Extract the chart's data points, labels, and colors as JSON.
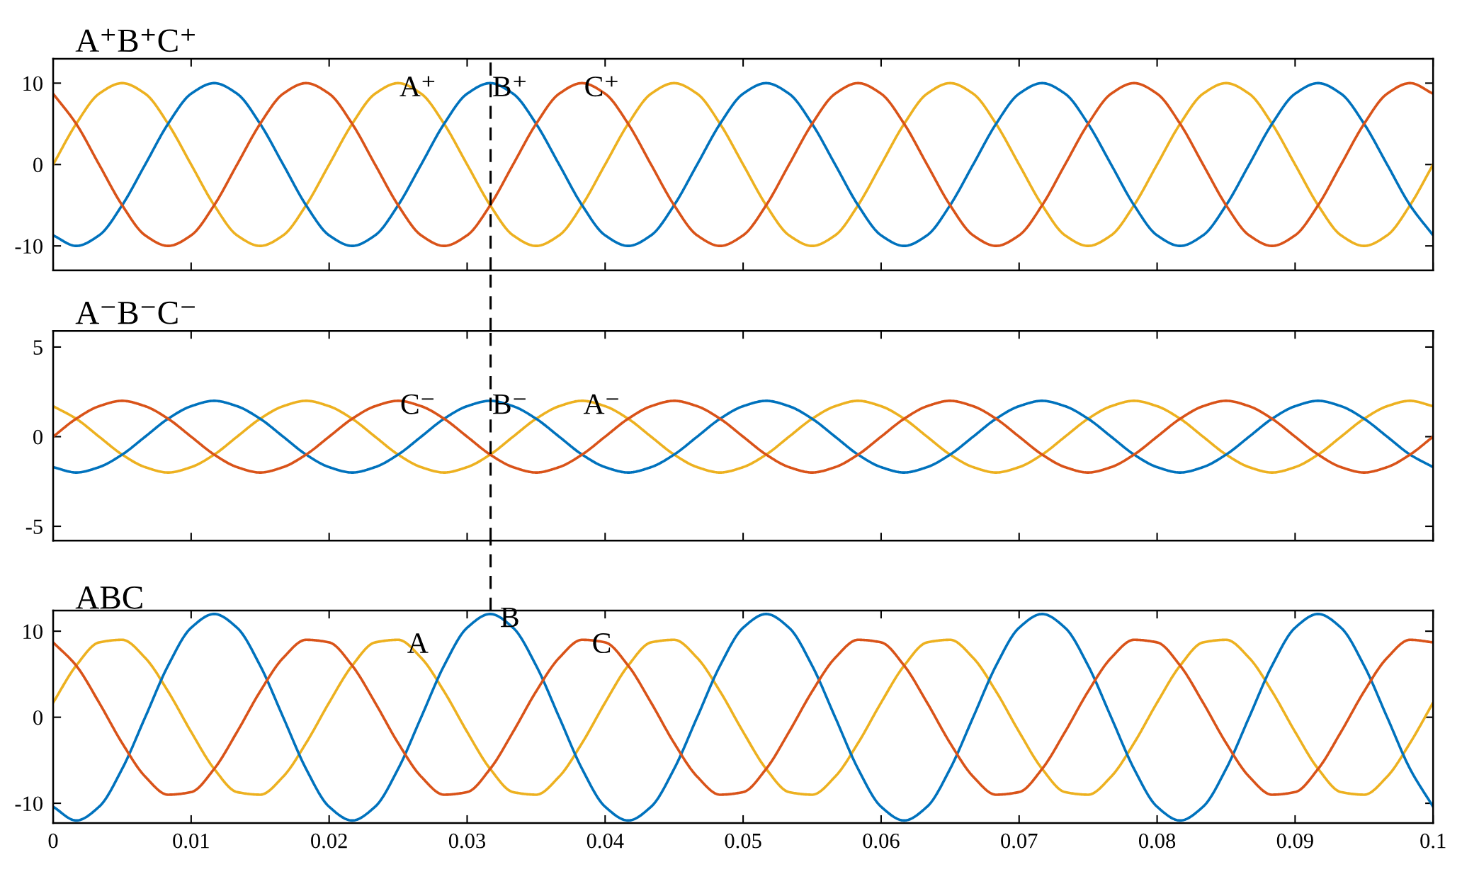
{
  "chart_data": [
    {
      "type": "line",
      "title": "A⁺B⁺C⁺",
      "xlim": [
        0,
        0.1
      ],
      "xticks": [
        0,
        0.01,
        0.02,
        0.03,
        0.04,
        0.05,
        0.06,
        0.07,
        0.08,
        0.09,
        0.1
      ],
      "ylim": [
        -13,
        13
      ],
      "yticks": [
        -10,
        0,
        10
      ],
      "tick_labels": "y",
      "line_style": "solid",
      "x": [
        0,
        0.00167,
        0.00333,
        0.005,
        0.00667,
        0.00833,
        0.01,
        0.01167,
        0.01333,
        0.015,
        0.01667,
        0.01833,
        0.02,
        0.02167,
        0.02333,
        0.025,
        0.02667,
        0.02833,
        0.03,
        0.03167,
        0.03333,
        0.035,
        0.03667,
        0.03833,
        0.04,
        0.04167,
        0.04333,
        0.045,
        0.04667,
        0.04833,
        0.05,
        0.05167,
        0.05333,
        0.055,
        0.05667,
        0.05833,
        0.06,
        0.06167,
        0.06333,
        0.065,
        0.06667,
        0.06833,
        0.07,
        0.07167,
        0.07333,
        0.075,
        0.07667,
        0.07833,
        0.08,
        0.08167,
        0.08333,
        0.085,
        0.08667,
        0.08833,
        0.09,
        0.09167,
        0.09333,
        0.095,
        0.09667,
        0.09833,
        0.1
      ],
      "series": [
        {
          "color": "#edb120",
          "values": [
            0,
            5,
            8.7,
            10,
            8.7,
            5,
            0,
            -5,
            -8.7,
            -10,
            -8.7,
            -5,
            0,
            5,
            8.7,
            10,
            8.7,
            5,
            0,
            -5,
            -8.7,
            -10,
            -8.7,
            -5,
            0,
            5,
            8.7,
            10,
            8.7,
            5,
            0,
            -5,
            -8.7,
            -10,
            -8.7,
            -5,
            0,
            5,
            8.7,
            10,
            8.7,
            5,
            0,
            -5,
            -8.7,
            -10,
            -8.7,
            -5,
            0,
            5,
            8.7,
            10,
            8.7,
            5,
            0,
            -5,
            -8.7,
            -10,
            -8.7,
            -5,
            0
          ]
        },
        {
          "color": "#0072bd",
          "values": [
            -8.7,
            -10,
            -8.7,
            -5,
            0,
            5,
            8.7,
            10,
            8.7,
            5,
            0,
            -5,
            -8.7,
            -10,
            -8.7,
            -5,
            0,
            5,
            8.7,
            10,
            8.7,
            5,
            0,
            -5,
            -8.7,
            -10,
            -8.7,
            -5,
            0,
            5,
            8.7,
            10,
            8.7,
            5,
            0,
            -5,
            -8.7,
            -10,
            -8.7,
            -5,
            0,
            5,
            8.7,
            10,
            8.7,
            5,
            0,
            -5,
            -8.7,
            -10,
            -8.7,
            -5,
            0,
            5,
            8.7,
            10,
            8.7,
            5,
            0,
            -5,
            -8.7
          ]
        },
        {
          "color": "#d95319",
          "values": [
            8.7,
            5,
            0,
            -5,
            -8.7,
            -10,
            -8.7,
            -5,
            0,
            5,
            8.7,
            10,
            8.7,
            5,
            0,
            -5,
            -8.7,
            -10,
            -8.7,
            -5,
            0,
            5,
            8.7,
            10,
            8.7,
            5,
            0,
            -5,
            -8.7,
            -10,
            -8.7,
            -5,
            0,
            5,
            8.7,
            10,
            8.7,
            5,
            0,
            -5,
            -8.7,
            -10,
            -8.7,
            -5,
            0,
            5,
            8.7,
            10,
            8.7,
            5,
            0,
            -5,
            -8.7,
            -10,
            -8.7,
            -5,
            0,
            5,
            8.7,
            10,
            8.7
          ]
        }
      ],
      "annotations": [
        {
          "text": "A⁺",
          "x": 0.025,
          "y": 10
        },
        {
          "text": "B⁺",
          "x": 0.03167,
          "y": 10
        },
        {
          "text": "C⁺",
          "x": 0.03833,
          "y": 10
        }
      ],
      "ref_lines": [
        {
          "axis": "x",
          "value": 0.0317,
          "color": "#000000",
          "line_style": "dashed"
        }
      ]
    },
    {
      "type": "line",
      "title": "A⁻B⁻C⁻",
      "xlim": [
        0,
        0.1
      ],
      "xticks": [
        0,
        0.01,
        0.02,
        0.03,
        0.04,
        0.05,
        0.06,
        0.07,
        0.08,
        0.09,
        0.1
      ],
      "ylim": [
        -5.8,
        5.9
      ],
      "yticks": [
        -5,
        0,
        5
      ],
      "tick_labels": "y",
      "line_style": "solid",
      "x": [
        0,
        0.00167,
        0.00333,
        0.005,
        0.00667,
        0.00833,
        0.01,
        0.01167,
        0.01333,
        0.015,
        0.01667,
        0.01833,
        0.02,
        0.02167,
        0.02333,
        0.025,
        0.02667,
        0.02833,
        0.03,
        0.03167,
        0.03333,
        0.035,
        0.03667,
        0.03833,
        0.04,
        0.04167,
        0.04333,
        0.045,
        0.04667,
        0.04833,
        0.05,
        0.05167,
        0.05333,
        0.055,
        0.05667,
        0.05833,
        0.06,
        0.06167,
        0.06333,
        0.065,
        0.06667,
        0.06833,
        0.07,
        0.07167,
        0.07333,
        0.075,
        0.07667,
        0.07833,
        0.08,
        0.08167,
        0.08333,
        0.085,
        0.08667,
        0.08833,
        0.09,
        0.09167,
        0.09333,
        0.095,
        0.09667,
        0.09833,
        0.1
      ],
      "series": [
        {
          "color": "#edb120",
          "values": [
            1.7,
            1,
            0,
            -1,
            -1.7,
            -2,
            -1.7,
            -1,
            0,
            1,
            1.7,
            2,
            1.7,
            1,
            0,
            -1,
            -1.7,
            -2,
            -1.7,
            -1,
            0,
            1,
            1.7,
            2,
            1.7,
            1,
            0,
            -1,
            -1.7,
            -2,
            -1.7,
            -1,
            0,
            1,
            1.7,
            2,
            1.7,
            1,
            0,
            -1,
            -1.7,
            -2,
            -1.7,
            -1,
            0,
            1,
            1.7,
            2,
            1.7,
            1,
            0,
            -1,
            -1.7,
            -2,
            -1.7,
            -1,
            0,
            1,
            1.7,
            2,
            1.7
          ]
        },
        {
          "color": "#0072bd",
          "values": [
            -1.7,
            -2,
            -1.7,
            -1,
            0,
            1,
            1.7,
            2,
            1.7,
            1,
            0,
            -1,
            -1.7,
            -2,
            -1.7,
            -1,
            0,
            1,
            1.7,
            2,
            1.7,
            1,
            0,
            -1,
            -1.7,
            -2,
            -1.7,
            -1,
            0,
            1,
            1.7,
            2,
            1.7,
            1,
            0,
            -1,
            -1.7,
            -2,
            -1.7,
            -1,
            0,
            1,
            1.7,
            2,
            1.7,
            1,
            0,
            -1,
            -1.7,
            -2,
            -1.7,
            -1,
            0,
            1,
            1.7,
            2,
            1.7,
            1,
            0,
            -1,
            -1.7
          ]
        },
        {
          "color": "#d95319",
          "values": [
            0,
            1,
            1.7,
            2,
            1.7,
            1,
            0,
            -1,
            -1.7,
            -2,
            -1.7,
            -1,
            0,
            1,
            1.7,
            2,
            1.7,
            1,
            0,
            -1,
            -1.7,
            -2,
            -1.7,
            -1,
            0,
            1,
            1.7,
            2,
            1.7,
            1,
            0,
            -1,
            -1.7,
            -2,
            -1.7,
            -1,
            0,
            1,
            1.7,
            2,
            1.7,
            1,
            0,
            -1,
            -1.7,
            -2,
            -1.7,
            -1,
            0,
            1,
            1.7,
            2,
            1.7,
            1,
            0,
            -1,
            -1.7,
            -2,
            -1.7,
            -1,
            0
          ]
        }
      ],
      "annotations": [
        {
          "text": "C⁻",
          "x": 0.025,
          "y": 2
        },
        {
          "text": "B⁻",
          "x": 0.03167,
          "y": 2
        },
        {
          "text": "A⁻",
          "x": 0.03833,
          "y": 2
        }
      ],
      "ref_lines": [
        {
          "axis": "x",
          "value": 0.0317,
          "color": "#000000",
          "line_style": "dashed"
        }
      ]
    },
    {
      "type": "line",
      "title": "ABC",
      "xlim": [
        0,
        0.1
      ],
      "xticks": [
        0,
        0.01,
        0.02,
        0.03,
        0.04,
        0.05,
        0.06,
        0.07,
        0.08,
        0.09,
        0.1
      ],
      "ylim": [
        -12.3,
        12.4
      ],
      "yticks": [
        -10,
        0,
        10
      ],
      "line_style": "solid",
      "x": [
        0,
        0.00167,
        0.00333,
        0.005,
        0.00667,
        0.00833,
        0.01,
        0.01167,
        0.01333,
        0.015,
        0.01667,
        0.01833,
        0.02,
        0.02167,
        0.02333,
        0.025,
        0.02667,
        0.02833,
        0.03,
        0.03167,
        0.03333,
        0.035,
        0.03667,
        0.03833,
        0.04,
        0.04167,
        0.04333,
        0.045,
        0.04667,
        0.04833,
        0.05,
        0.05167,
        0.05333,
        0.055,
        0.05667,
        0.05833,
        0.06,
        0.06167,
        0.06333,
        0.065,
        0.06667,
        0.06833,
        0.07,
        0.07167,
        0.07333,
        0.075,
        0.07667,
        0.07833,
        0.08,
        0.08167,
        0.08333,
        0.085,
        0.08667,
        0.08833,
        0.09,
        0.09167,
        0.09333,
        0.095,
        0.09667,
        0.09833,
        0.1
      ],
      "series": [
        {
          "color": "#edb120",
          "values": [
            1.7,
            6,
            8.7,
            9,
            6.9,
            3,
            -1.7,
            -6,
            -8.7,
            -9,
            -6.9,
            -3,
            1.7,
            6,
            8.7,
            9,
            6.9,
            3,
            -1.7,
            -6,
            -8.7,
            -9,
            -6.9,
            -3,
            1.7,
            6,
            8.7,
            9,
            6.9,
            3,
            -1.7,
            -6,
            -8.7,
            -9,
            -6.9,
            -3,
            1.7,
            6,
            8.7,
            9,
            6.9,
            3,
            -1.7,
            -6,
            -8.7,
            -9,
            -6.9,
            -3,
            1.7,
            6,
            8.7,
            9,
            6.9,
            3,
            -1.7,
            -6,
            -8.7,
            -9,
            -6.9,
            -3,
            1.7
          ]
        },
        {
          "color": "#0072bd",
          "values": [
            -10.4,
            -12,
            -10.4,
            -6,
            0,
            6,
            10.4,
            12,
            10.4,
            6,
            0,
            -6,
            -10.4,
            -12,
            -10.4,
            -6,
            0,
            6,
            10.4,
            12,
            10.4,
            6,
            0,
            -6,
            -10.4,
            -12,
            -10.4,
            -6,
            0,
            6,
            10.4,
            12,
            10.4,
            6,
            0,
            -6,
            -10.4,
            -12,
            -10.4,
            -6,
            0,
            6,
            10.4,
            12,
            10.4,
            6,
            0,
            -6,
            -10.4,
            -12,
            -10.4,
            -6,
            0,
            6,
            10.4,
            12,
            10.4,
            6,
            0,
            -6,
            -10.4
          ]
        },
        {
          "color": "#d95319",
          "values": [
            8.7,
            6,
            1.7,
            -3,
            -6.9,
            -9,
            -8.7,
            -6,
            -1.7,
            3,
            6.9,
            9,
            8.7,
            6,
            1.7,
            -3,
            -6.9,
            -9,
            -8.7,
            -6,
            -1.7,
            3,
            6.9,
            9,
            8.7,
            6,
            1.7,
            -3,
            -6.9,
            -9,
            -8.7,
            -6,
            -1.7,
            3,
            6.9,
            9,
            8.7,
            6,
            1.7,
            -3,
            -6.9,
            -9,
            -8.7,
            -6,
            -1.7,
            3,
            6.9,
            9,
            8.7,
            6,
            1.7,
            -3,
            -6.9,
            -9,
            -8.7,
            -6,
            -1.7,
            3,
            6.9,
            9,
            8.7
          ]
        }
      ],
      "annotations": [
        {
          "text": "A",
          "x": 0.025,
          "y": 9
        },
        {
          "text": "B",
          "x": 0.03167,
          "y": 12
        },
        {
          "text": "C",
          "x": 0.03833,
          "y": 9
        }
      ]
    }
  ]
}
